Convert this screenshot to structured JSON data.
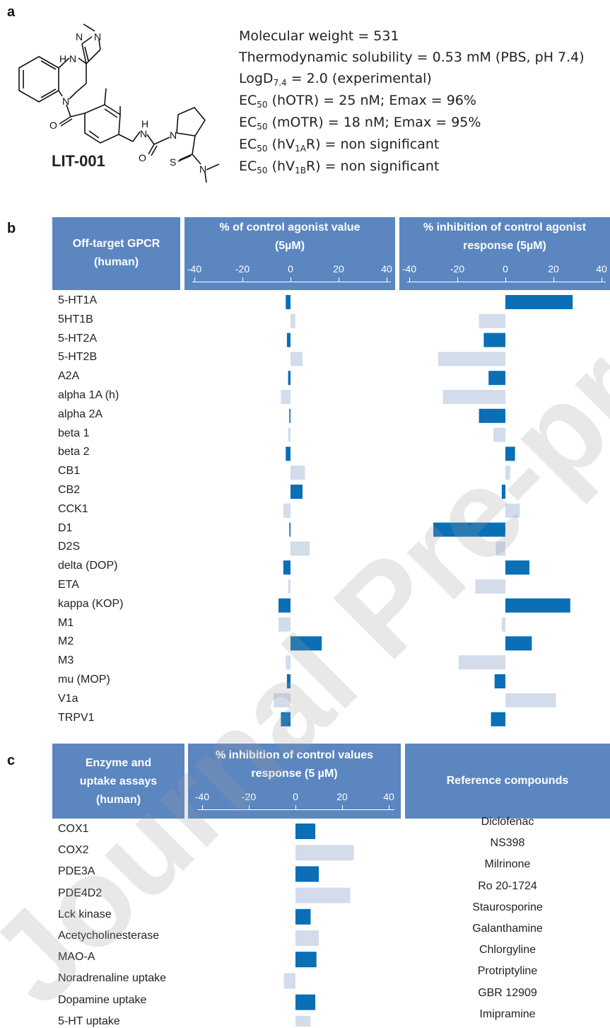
{
  "panels": {
    "a": "a",
    "b": "b",
    "c": "c"
  },
  "compound": {
    "name": "LIT-001",
    "atoms": {
      "N1": "N",
      "N2": "N",
      "H1": "H",
      "N3": "N",
      "N4": "N",
      "O1": "O",
      "H2": "H",
      "N5": "N",
      "O2": "O",
      "N6": "N",
      "S1": "S",
      "N7": "N"
    }
  },
  "properties": [
    {
      "text": "Molecular weight = 531"
    },
    {
      "text": "Thermodynamic solubility = 0.53 mM (PBS, pH 7.4)"
    },
    {
      "pre": "LogD",
      "sub": "7.4",
      "post": " = 2.0 (experimental)"
    },
    {
      "pre": "EC",
      "sub": "50",
      "post": " (hOTR) = 25 nM; Emax = 96%"
    },
    {
      "pre": "EC",
      "sub": "50",
      "post": " (mOTR) = 18 nM; Emax = 95%"
    },
    {
      "pre": "EC",
      "sub": "50",
      "post": " (hV",
      "sub2": "1A",
      "post2": "R) = non significant"
    },
    {
      "pre": "EC",
      "sub": "50",
      "post": " (hV",
      "sub2": "1B",
      "post2": "R) = non significant"
    }
  ],
  "panel_b": {
    "header_left": [
      "Off-target GPCR",
      "(human)"
    ],
    "header_mid": [
      "% of control agonist value",
      "(5µM)"
    ],
    "header_right": [
      "% inhibition of control agonist",
      "response (5µM)"
    ],
    "ticks": [
      "-40",
      "-20",
      "0",
      "20",
      "40"
    ]
  },
  "panel_c": {
    "header_left": [
      "Enzyme and",
      "uptake assays",
      "(human)"
    ],
    "header_mid": [
      "% inhibition of control values",
      "response (5 µM)"
    ],
    "header_right": "Reference compounds",
    "ticks": [
      "-40",
      "-20",
      "0",
      "20",
      "40"
    ]
  },
  "colors": {
    "dark": "#0a6fb5",
    "light": "#d3dceb",
    "header": "#5b86c0"
  },
  "watermark": "Journal Pre-proof",
  "chart_data": [
    {
      "type": "bar",
      "orientation": "horizontal",
      "title": "% of control agonist value (5µM)",
      "xlim": [
        -40,
        40
      ],
      "categories": [
        "5-HT1A",
        "5HT1B",
        "5-HT2A",
        "5-HT2B",
        "A2A",
        "alpha 1A (h)",
        "alpha 2A",
        "beta 1",
        "beta 2",
        "CB1",
        "CB2",
        "CCK1",
        "D1",
        "D2S",
        "delta  (DOP)",
        "ETA",
        "kappa (KOP)",
        "M1",
        "M2",
        "M3",
        "mu  (MOP)",
        "V1a",
        "TRPV1"
      ],
      "values": [
        -2,
        2,
        -1.5,
        5,
        -1,
        -4,
        -0.5,
        -1,
        -2,
        6,
        5,
        -3,
        -0.5,
        8,
        -3,
        -1,
        -5,
        -5,
        13,
        -2,
        -1.5,
        -7,
        -4
      ],
      "dark": [
        true,
        false,
        true,
        false,
        true,
        false,
        true,
        false,
        true,
        false,
        true,
        false,
        true,
        false,
        true,
        false,
        true,
        false,
        true,
        false,
        true,
        false,
        true
      ]
    },
    {
      "type": "bar",
      "orientation": "horizontal",
      "title": "% inhibition of control agonist response (5µM)",
      "xlim": [
        -40,
        40
      ],
      "categories": [
        "5-HT1A",
        "5HT1B",
        "5-HT2A",
        "5-HT2B",
        "A2A",
        "alpha 1A (h)",
        "alpha 2A",
        "beta 1",
        "beta 2",
        "CB1",
        "CB2",
        "CCK1",
        "D1",
        "D2S",
        "delta  (DOP)",
        "ETA",
        "kappa (KOP)",
        "M1",
        "M2",
        "M3",
        "mu  (MOP)",
        "V1a",
        "TRPV1"
      ],
      "values": [
        28,
        -11,
        -9,
        -28,
        -7,
        -26,
        -11,
        -5,
        4,
        2,
        -1.5,
        6,
        -30,
        -4,
        10,
        -12.5,
        27,
        -1.5,
        11,
        -19.5,
        -4.5,
        21,
        -6
      ],
      "dark": [
        true,
        false,
        true,
        false,
        true,
        false,
        true,
        false,
        true,
        false,
        true,
        false,
        true,
        false,
        true,
        false,
        true,
        false,
        true,
        false,
        true,
        false,
        true
      ]
    },
    {
      "type": "bar",
      "orientation": "horizontal",
      "title": "% inhibition of control values response (5 µM)",
      "xlim": [
        -40,
        40
      ],
      "categories": [
        "COX1",
        "COX2",
        "PDE3A",
        "PDE4D2",
        "Lck kinase",
        "Acetycholinesterase",
        "MAO-A",
        "Noradrenaline uptake",
        "Dopamine uptake",
        "5-HT uptake"
      ],
      "values": [
        8.5,
        25,
        10,
        23.5,
        6.5,
        10,
        9,
        -5,
        8.5,
        6.5
      ],
      "dark": [
        true,
        false,
        true,
        false,
        true,
        false,
        true,
        false,
        true,
        false
      ],
      "reference_compounds": [
        "Diclofenac",
        "NS398",
        "Milrinone",
        "Ro 20-1724",
        "Staurosporine",
        "Galanthamine",
        "Chlorgyline",
        "Protriptyline",
        "GBR 12909",
        "Imipramine"
      ]
    }
  ]
}
